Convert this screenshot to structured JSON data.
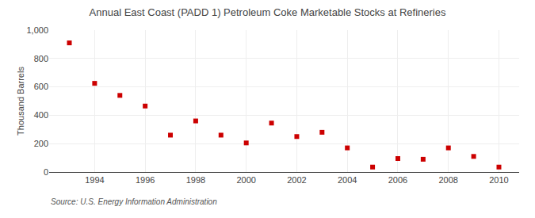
{
  "chart_data": {
    "type": "scatter",
    "title": "Annual East Coast (PADD 1) Petroleum Coke Marketable Stocks at Refineries",
    "ylabel": "Thousand Barrels",
    "annotations": [
      "Source: U.S. Energy Information Administration"
    ],
    "x": [
      1993,
      1994,
      1995,
      1996,
      1997,
      1998,
      1999,
      2000,
      2001,
      2002,
      2003,
      2004,
      2005,
      2006,
      2007,
      2008,
      2009,
      2010
    ],
    "values": [
      910,
      625,
      540,
      465,
      260,
      360,
      260,
      205,
      345,
      250,
      280,
      170,
      35,
      95,
      90,
      170,
      110,
      35
    ],
    "color": "#cc0000",
    "marker": "square",
    "xlim": [
      1992.2,
      2010.8
    ],
    "xticks": [
      1994,
      1996,
      1998,
      2000,
      2002,
      2004,
      2006,
      2008,
      2010
    ],
    "ylim": [
      0,
      1000
    ],
    "yticks": [
      0,
      200,
      400,
      600,
      800,
      {
        "value": 1000,
        "label": "1,000"
      }
    ],
    "grid": true
  }
}
